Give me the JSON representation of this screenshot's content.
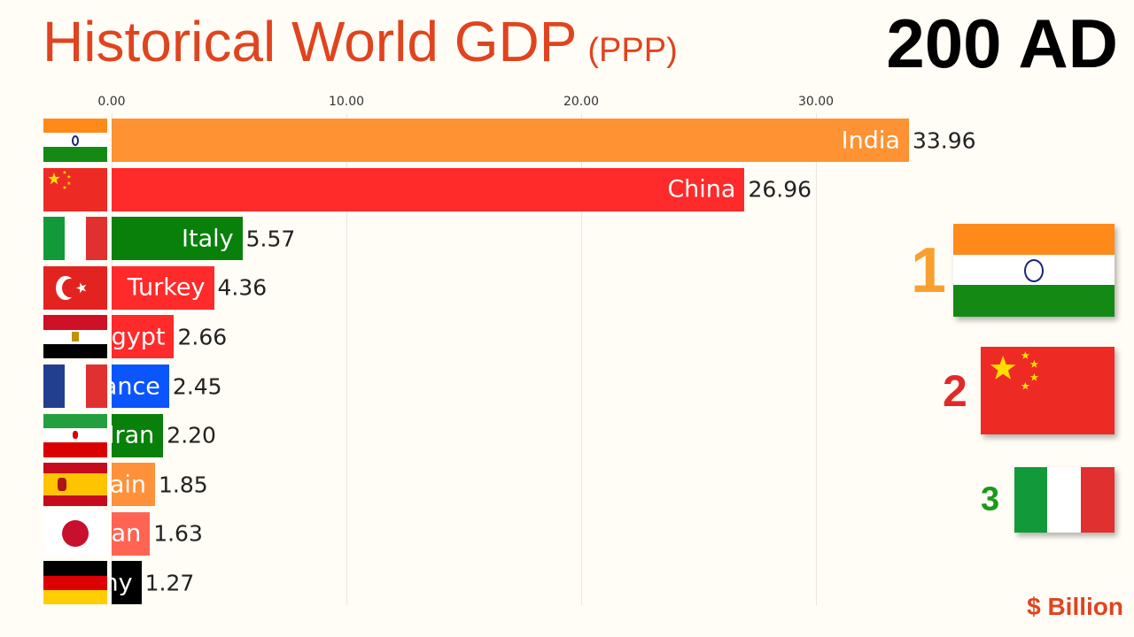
{
  "title": "Historical World GDP",
  "subtitle": "(PPP)",
  "year": "200 AD",
  "unit": "$ Billion",
  "chart_data": {
    "type": "bar",
    "title": "Historical World GDP (PPP)",
    "xlabel": "$ Billion",
    "xlim": [
      0,
      33.96
    ],
    "ticks": [
      "0.00",
      "10.00",
      "20.00",
      "30.00"
    ],
    "tick_values": [
      0,
      10,
      20,
      30
    ],
    "categories": [
      "India",
      "China",
      "Italy",
      "Turkey",
      "Egypt",
      "France",
      "Iran",
      "Spain",
      "Japan",
      "Germany"
    ],
    "values": [
      33.96,
      26.96,
      5.57,
      4.36,
      2.66,
      2.45,
      2.2,
      1.85,
      1.63,
      1.27
    ],
    "value_labels": [
      "33.96",
      "26.96",
      "5.57",
      "4.36",
      "2.66",
      "2.45",
      "2.20",
      "1.85",
      "1.63",
      "1.27"
    ],
    "colors": [
      "#ff9233",
      "#ff2a2a",
      "#08800a",
      "#ff2a2a",
      "#ff2a2a",
      "#0b55ff",
      "#08800a",
      "#ff913a",
      "#ff6452",
      "#000000"
    ],
    "flags": [
      "india",
      "china",
      "italy",
      "turkey",
      "egypt",
      "france",
      "iran",
      "spain",
      "japan",
      "germany"
    ]
  },
  "ranking": [
    {
      "rank": "1",
      "flag": "india",
      "color": "#f7a030"
    },
    {
      "rank": "2",
      "flag": "china",
      "color": "#e02a2a"
    },
    {
      "rank": "3",
      "flag": "italy",
      "color": "#1a9a1a"
    }
  ]
}
